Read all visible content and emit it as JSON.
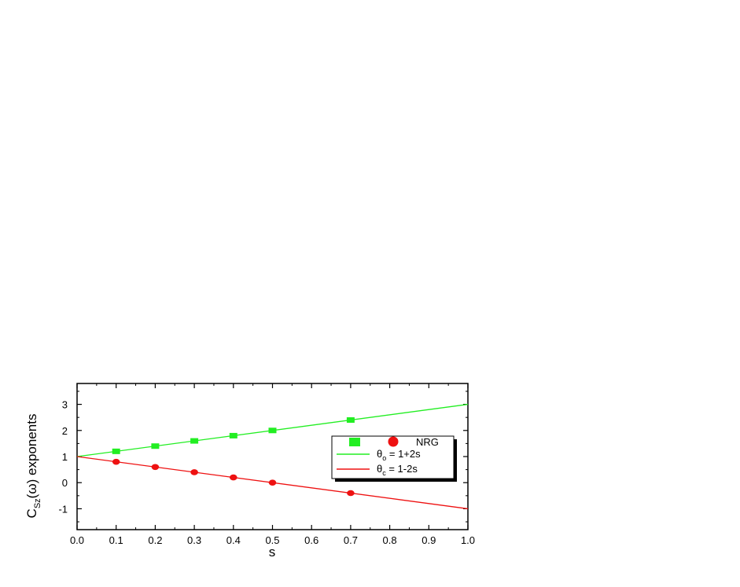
{
  "chart_data": {
    "type": "scatter",
    "xlabel": "s",
    "ylabel": {
      "main": "C",
      "sub": "Sz",
      "rest": "(ω)  exponents"
    },
    "xlim": [
      0.0,
      1.0
    ],
    "ylim": [
      -1.8,
      3.8
    ],
    "xticks": [
      "0.0",
      "0.1",
      "0.2",
      "0.3",
      "0.4",
      "0.5",
      "0.6",
      "0.7",
      "0.8",
      "0.9",
      "1.0"
    ],
    "yticks": [
      "-1",
      "0",
      "1",
      "2",
      "3"
    ],
    "grid": false,
    "legend_position": "right",
    "series": [
      {
        "kind": "points",
        "marker": "square",
        "color": "#22ee22",
        "x": [
          0.1,
          0.2,
          0.3,
          0.4,
          0.5,
          0.7
        ],
        "y": [
          1.2,
          1.4,
          1.6,
          1.8,
          2.0,
          2.4
        ]
      },
      {
        "kind": "points",
        "marker": "circle",
        "color": "#ee1111",
        "x": [
          0.1,
          0.2,
          0.3,
          0.4,
          0.5,
          0.7
        ],
        "y": [
          0.8,
          0.6,
          0.4,
          0.2,
          0.0,
          -0.4
        ]
      },
      {
        "kind": "line",
        "color": "#22ee22",
        "x": [
          0.0,
          1.0
        ],
        "y": [
          1.0,
          3.0
        ]
      },
      {
        "kind": "line",
        "color": "#ee1111",
        "x": [
          0.0,
          1.0
        ],
        "y": [
          1.0,
          -1.0
        ]
      }
    ],
    "legend": {
      "points_label": "NRG",
      "line1": {
        "symbol": "θ",
        "sub": "o",
        "text": " = 1+2s"
      },
      "line2": {
        "symbol": "θ",
        "sub": "c",
        "text": " = 1-2s"
      }
    }
  }
}
